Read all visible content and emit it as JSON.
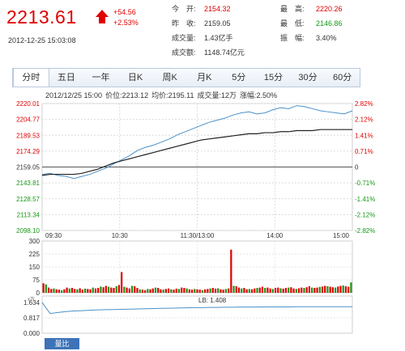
{
  "quote": {
    "price": "2213.61",
    "change": "+54.56",
    "change_pct": "+2.53%",
    "timestamp": "2012-12-25 15:03:08"
  },
  "stats": [
    {
      "label": "今　开:",
      "value": "2154.32",
      "color": "red"
    },
    {
      "label": "昨　收:",
      "value": "2159.05",
      "color": ""
    },
    {
      "label": "成交量:",
      "value": "1.43亿手",
      "color": ""
    },
    {
      "label": "成交额:",
      "value": "1148.74亿元",
      "color": ""
    },
    {
      "label": "最　高:",
      "value": "2220.26",
      "color": "red"
    },
    {
      "label": "最　低:",
      "value": "2146.86",
      "color": "green"
    },
    {
      "label": "振　幅:",
      "value": "3.40%",
      "color": ""
    }
  ],
  "tabs": [
    "分时",
    "五日",
    "一年",
    "日K",
    "周K",
    "月K",
    "5分",
    "15分",
    "30分",
    "60分"
  ],
  "active_tab": "分时",
  "info_bar": {
    "date": "2012/12/25 15:00",
    "price": "价位:2213.12",
    "avg": "均价:2195.11",
    "volume": "成交量:12万",
    "pct": "涨幅:2.50%"
  },
  "bottom_tab": "量比",
  "colors": {
    "up": "#e00000",
    "down": "#159a15",
    "price_line": "#4a90c8",
    "avg_line": "#222222"
  },
  "chart_data": [
    {
      "type": "line",
      "x_ticks": [
        "09:30",
        "10:30",
        "11:30/13:00",
        "14:00",
        "15:00"
      ],
      "y_left_ticks": [
        "2220.01",
        "2204.77",
        "2189.53",
        "2174.29",
        "2159.05",
        "2143.81",
        "2128.57",
        "2113.34",
        "2098.10"
      ],
      "y_right_ticks": [
        "2.82%",
        "2.12%",
        "1.41%",
        "0.71%",
        "0",
        "-0.71%",
        "-1.41%",
        "-2.12%",
        "-2.82%"
      ],
      "ylim": [
        2098.1,
        2220.01
      ],
      "baseline": 2159.05,
      "series": [
        {
          "values": [
            2152,
            2153,
            2151,
            2150,
            2148,
            2150,
            2152,
            2155,
            2158,
            2162,
            2166,
            2170,
            2175,
            2178,
            2180,
            2183,
            2186,
            2190,
            2193,
            2196,
            2199,
            2202,
            2204,
            2206,
            2209,
            2211,
            2212,
            2210,
            2211,
            2214,
            2216,
            2215,
            2218,
            2217,
            2215,
            2213,
            2212,
            2211,
            2210,
            2213
          ]
        },
        {
          "values": [
            2151,
            2152,
            2152,
            2152,
            2152,
            2153,
            2155,
            2157,
            2160,
            2163,
            2165,
            2167,
            2169,
            2171,
            2173,
            2175,
            2177,
            2179,
            2181,
            2183,
            2185,
            2186,
            2187,
            2188,
            2189,
            2190,
            2191,
            2191,
            2192,
            2192,
            2193,
            2193,
            2194,
            2194,
            2194,
            2195,
            2195,
            2195,
            2195,
            2195
          ]
        }
      ]
    },
    {
      "type": "bar",
      "y_ticks": [
        "300",
        "225",
        "150",
        "75",
        "0"
      ],
      "ylim": [
        0,
        300
      ],
      "values": [
        55,
        48,
        30,
        22,
        25,
        20,
        18,
        15,
        20,
        30,
        25,
        28,
        22,
        20,
        26,
        18,
        24,
        22,
        20,
        30,
        25,
        28,
        36,
        32,
        40,
        35,
        30,
        28,
        38,
        45,
        120,
        35,
        30,
        25,
        40,
        38,
        28,
        20,
        18,
        15,
        22,
        20,
        25,
        30,
        28,
        20,
        18,
        22,
        25,
        20,
        18,
        24,
        22,
        30,
        28,
        25,
        20,
        18,
        22,
        20,
        18,
        15,
        20,
        22,
        25,
        28,
        24,
        26,
        20,
        18,
        22,
        25,
        250,
        40,
        38,
        30,
        25,
        28,
        20,
        22,
        20,
        25,
        28,
        30,
        35,
        28,
        30,
        25,
        22,
        28,
        30,
        26,
        24,
        28,
        30,
        32,
        25,
        22,
        26,
        30,
        28,
        32,
        38,
        30,
        28,
        30,
        34,
        36,
        40,
        38,
        35,
        32,
        30,
        36,
        40,
        42,
        38,
        35,
        60
      ]
    },
    {
      "type": "line",
      "title": "LB: 1.408",
      "y_ticks": [
        "1.634",
        "0.817",
        "0.000"
      ],
      "ylim": [
        0,
        1.634
      ],
      "values": [
        1.63,
        1.05,
        1.1,
        1.15,
        1.18,
        1.2,
        1.22,
        1.24,
        1.25,
        1.26,
        1.27,
        1.28,
        1.29,
        1.3,
        1.31,
        1.32,
        1.33,
        1.34,
        1.35,
        1.36,
        1.36,
        1.37,
        1.37,
        1.38,
        1.38,
        1.39,
        1.39,
        1.39,
        1.4,
        1.4,
        1.4,
        1.4,
        1.41,
        1.41,
        1.41,
        1.41,
        1.41,
        1.41,
        1.41,
        1.408
      ]
    }
  ]
}
